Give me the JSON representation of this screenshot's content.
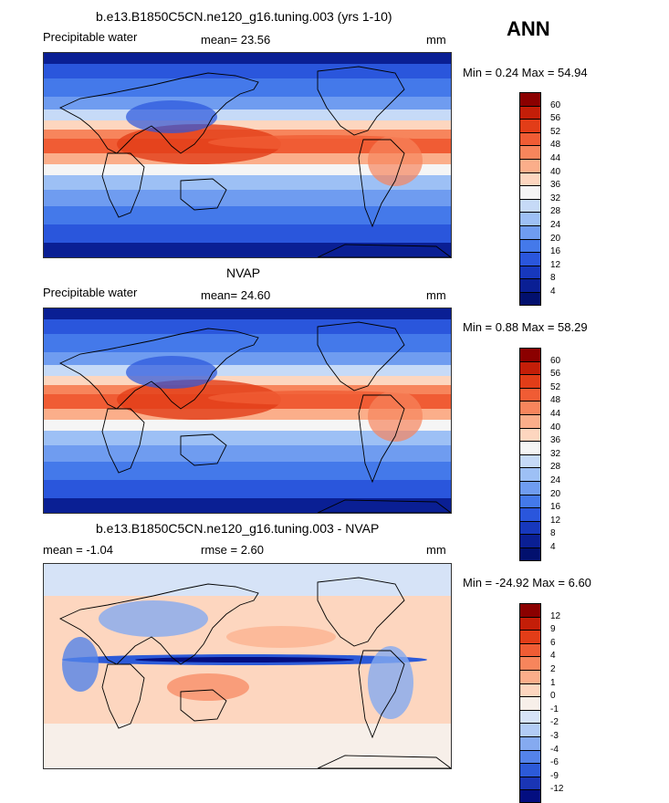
{
  "header": {
    "season": "ANN"
  },
  "panels": [
    {
      "title": "b.e13.B1850C5CN.ne120_g16.tuning.003 (yrs 1-10)",
      "left": "Precipitable water",
      "mid": "mean=  23.56",
      "unit": "mm",
      "minmax": "Min =   0.24 Max =  54.94",
      "labels": [
        "60",
        "56",
        "52",
        "48",
        "44",
        "40",
        "36",
        "32",
        "28",
        "24",
        "20",
        "16",
        "12",
        "8",
        "4"
      ],
      "colors": [
        "#8b0000",
        "#c41e08",
        "#e23d18",
        "#f05c34",
        "#f7855c",
        "#fbae8a",
        "#fdd6bf",
        "#f5f5f5",
        "#c6daf7",
        "#9dc0f5",
        "#6f9cf0",
        "#4479ea",
        "#2a56dc",
        "#1738bd",
        "#0a1f94",
        "#02106e"
      ]
    },
    {
      "title": "NVAP",
      "left": "Precipitable water",
      "mid": "mean=  24.60",
      "unit": "mm",
      "minmax": "Min =   0.88 Max =  58.29",
      "labels": [
        "60",
        "56",
        "52",
        "48",
        "44",
        "40",
        "36",
        "32",
        "28",
        "24",
        "20",
        "16",
        "12",
        "8",
        "4"
      ],
      "colors": [
        "#8b0000",
        "#c41e08",
        "#e23d18",
        "#f05c34",
        "#f7855c",
        "#fbae8a",
        "#fdd6bf",
        "#f5f5f5",
        "#c6daf7",
        "#9dc0f5",
        "#6f9cf0",
        "#4479ea",
        "#2a56dc",
        "#1738bd",
        "#0a1f94",
        "#02106e"
      ]
    },
    {
      "title": "b.e13.B1850C5CN.ne120_g16.tuning.003 - NVAP",
      "left": "mean =  -1.04",
      "mid": "rmse =   2.60",
      "unit": "mm",
      "minmax": "Min = -24.92 Max =   6.60",
      "labels": [
        "12",
        "9",
        "6",
        "4",
        "2",
        "1",
        "0",
        "-1",
        "-2",
        "-3",
        "-4",
        "-6",
        "-9",
        "-12"
      ],
      "colors": [
        "#8b0000",
        "#c41e08",
        "#e23d18",
        "#f05c34",
        "#f7855c",
        "#fbae8a",
        "#fdd6bf",
        "#f7efe9",
        "#d6e3f7",
        "#b2ccf5",
        "#85aaf0",
        "#5483e9",
        "#2c5ad8",
        "#1a35b5",
        "#030e80"
      ]
    }
  ]
}
